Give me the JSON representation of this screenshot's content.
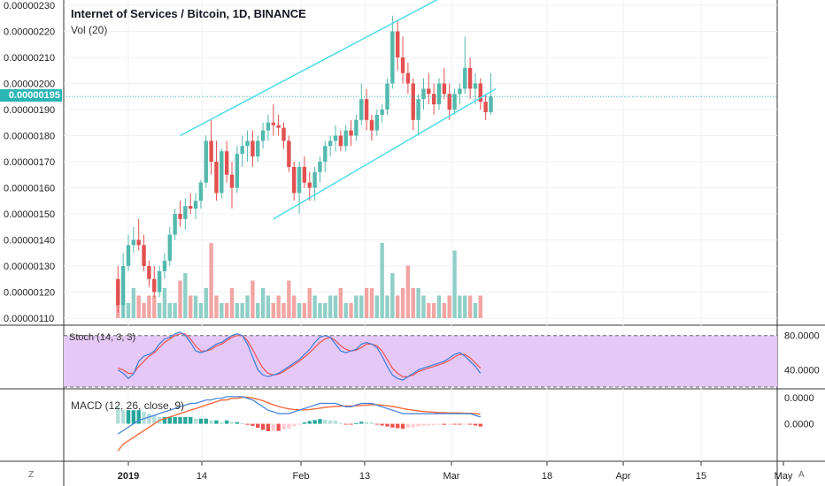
{
  "header": {
    "title": "Internet of Services / Bitcoin, 1D, BINANCE",
    "volume_label": "Vol (20)"
  },
  "current_price": "0.00000195",
  "price_axis": {
    "ticks": [
      "0.00000230",
      "0.00000220",
      "0.00000210",
      "0.00000200",
      "0.00000190",
      "0.00000180",
      "0.00000170",
      "0.00000160",
      "0.00000150",
      "0.00000140",
      "0.00000130",
      "0.00000120",
      "0.00000110"
    ]
  },
  "stoch": {
    "label": "Stoch (14, 3, 3)",
    "ticks": [
      "80.0000",
      "40.0000"
    ]
  },
  "macd": {
    "label": "MACD (12, 26, close, 9)",
    "ticks": [
      "0.0000",
      "0.0000"
    ]
  },
  "x_axis": {
    "ticks": [
      "2019",
      "14",
      "Feb",
      "13",
      "Mar",
      "18",
      "Apr",
      "15",
      "May"
    ]
  },
  "corners": {
    "left": "Z",
    "right": "A"
  },
  "colors": {
    "up": "#53b9ad",
    "down": "#e2504f",
    "vol_up": "#8fcfc7",
    "vol_down": "#f2a5a3",
    "channel": "#4ddbe8",
    "stoch_fill": "#e5c8f5",
    "k_line": "#3d7ed9",
    "d_line": "#ef5350",
    "macd_line": "#3d7ed9",
    "signal_line": "#f26b3a"
  },
  "chart_data": {
    "type": "candlestick",
    "x_unit": "days since 2019-01-01",
    "candles": [
      [
        -2,
        1.25,
        1.3,
        1.12,
        1.15
      ],
      [
        -1,
        1.15,
        1.35,
        1.1,
        1.3
      ],
      [
        0,
        1.3,
        1.42,
        1.28,
        1.38
      ],
      [
        1,
        1.38,
        1.45,
        1.35,
        1.4
      ],
      [
        2,
        1.4,
        1.48,
        1.36,
        1.38
      ],
      [
        3,
        1.38,
        1.42,
        1.28,
        1.3
      ],
      [
        4,
        1.3,
        1.32,
        1.22,
        1.25
      ],
      [
        5,
        1.25,
        1.3,
        1.18,
        1.2
      ],
      [
        6,
        1.2,
        1.3,
        1.18,
        1.28
      ],
      [
        7,
        1.28,
        1.35,
        1.25,
        1.32
      ],
      [
        8,
        1.32,
        1.45,
        1.3,
        1.42
      ],
      [
        9,
        1.42,
        1.52,
        1.4,
        1.5
      ],
      [
        10,
        1.5,
        1.55,
        1.45,
        1.48
      ],
      [
        11,
        1.48,
        1.56,
        1.44,
        1.53
      ],
      [
        12,
        1.53,
        1.58,
        1.5,
        1.52
      ],
      [
        13,
        1.52,
        1.58,
        1.48,
        1.55
      ],
      [
        14,
        1.55,
        1.63,
        1.52,
        1.62
      ],
      [
        15,
        1.62,
        1.8,
        1.6,
        1.78
      ],
      [
        16,
        1.78,
        1.86,
        1.65,
        1.7
      ],
      [
        17,
        1.7,
        1.78,
        1.55,
        1.58
      ],
      [
        18,
        1.58,
        1.75,
        1.56,
        1.74
      ],
      [
        19,
        1.74,
        1.78,
        1.62,
        1.65
      ],
      [
        20,
        1.65,
        1.7,
        1.52,
        1.6
      ],
      [
        21,
        1.6,
        1.76,
        1.58,
        1.73
      ],
      [
        22,
        1.73,
        1.8,
        1.68,
        1.76
      ],
      [
        23,
        1.76,
        1.82,
        1.7,
        1.78
      ],
      [
        24,
        1.78,
        1.82,
        1.68,
        1.72
      ],
      [
        25,
        1.72,
        1.8,
        1.7,
        1.78
      ],
      [
        26,
        1.78,
        1.85,
        1.75,
        1.82
      ],
      [
        27,
        1.82,
        1.88,
        1.78,
        1.85
      ],
      [
        28,
        1.85,
        1.92,
        1.8,
        1.84
      ],
      [
        29,
        1.84,
        1.88,
        1.8,
        1.83
      ],
      [
        30,
        1.83,
        1.85,
        1.75,
        1.78
      ],
      [
        31,
        1.78,
        1.8,
        1.66,
        1.68
      ],
      [
        32,
        1.68,
        1.7,
        1.55,
        1.58
      ],
      [
        33,
        1.58,
        1.7,
        1.5,
        1.68
      ],
      [
        34,
        1.68,
        1.72,
        1.6,
        1.62
      ],
      [
        35,
        1.62,
        1.66,
        1.55,
        1.6
      ],
      [
        36,
        1.6,
        1.68,
        1.55,
        1.66
      ],
      [
        37,
        1.66,
        1.72,
        1.62,
        1.7
      ],
      [
        38,
        1.7,
        1.78,
        1.66,
        1.76
      ],
      [
        39,
        1.76,
        1.8,
        1.72,
        1.78
      ],
      [
        40,
        1.78,
        1.84,
        1.74,
        1.8
      ],
      [
        41,
        1.8,
        1.82,
        1.74,
        1.76
      ],
      [
        42,
        1.76,
        1.84,
        1.74,
        1.82
      ],
      [
        43,
        1.82,
        1.86,
        1.76,
        1.8
      ],
      [
        44,
        1.8,
        1.88,
        1.78,
        1.86
      ],
      [
        45,
        1.86,
        2.0,
        1.84,
        1.94
      ],
      [
        46,
        1.94,
        1.98,
        1.82,
        1.86
      ],
      [
        47,
        1.86,
        1.88,
        1.78,
        1.82
      ],
      [
        48,
        1.82,
        1.9,
        1.8,
        1.88
      ],
      [
        49,
        1.88,
        1.92,
        1.85,
        1.9
      ],
      [
        50,
        1.9,
        2.02,
        1.88,
        2.0
      ],
      [
        51,
        2.0,
        2.26,
        1.98,
        2.2
      ],
      [
        52,
        2.2,
        2.24,
        2.05,
        2.1
      ],
      [
        53,
        2.1,
        2.18,
        2.0,
        2.04
      ],
      [
        54,
        2.04,
        2.08,
        1.96,
        2.0
      ],
      [
        55,
        2.0,
        2.02,
        1.82,
        1.86
      ],
      [
        56,
        1.86,
        1.96,
        1.8,
        1.94
      ],
      [
        57,
        1.94,
        2.02,
        1.9,
        1.98
      ],
      [
        58,
        1.98,
        2.04,
        1.92,
        1.96
      ],
      [
        59,
        1.96,
        2.0,
        1.88,
        1.92
      ],
      [
        60,
        1.92,
        2.02,
        1.9,
        2.0
      ],
      [
        61,
        2.0,
        2.06,
        1.94,
        1.96
      ],
      [
        62,
        1.96,
        2.0,
        1.86,
        1.9
      ],
      [
        63,
        1.9,
        1.98,
        1.88,
        1.96
      ],
      [
        64,
        1.96,
        2.0,
        1.92,
        1.98
      ],
      [
        65,
        1.98,
        2.18,
        1.96,
        2.06
      ],
      [
        66,
        2.06,
        2.1,
        1.94,
        1.98
      ],
      [
        67,
        1.98,
        2.04,
        1.92,
        2.0
      ],
      [
        68,
        2.0,
        2.02,
        1.9,
        1.93
      ],
      [
        69,
        1.93,
        1.96,
        1.86,
        1.89
      ],
      [
        70,
        1.89,
        2.04,
        1.88,
        1.95
      ]
    ],
    "volume": [
      3,
      2,
      2,
      4,
      3,
      2,
      3,
      3,
      2,
      4,
      2,
      2,
      5,
      6,
      3,
      3,
      2,
      4,
      10,
      3,
      2,
      2,
      4,
      2,
      2,
      3,
      5,
      2,
      4,
      3,
      2,
      3,
      2,
      5,
      3,
      2,
      2,
      4,
      3,
      2,
      2,
      3,
      3,
      4,
      2,
      2,
      3,
      3,
      4,
      4,
      3,
      10,
      3,
      6,
      3,
      4,
      7,
      4,
      4,
      3,
      2,
      2,
      3,
      2,
      3,
      9,
      3,
      3,
      3,
      2,
      3
    ],
    "channel_upper": [
      [
        10,
        1.8
      ],
      [
        69,
        2.42
      ]
    ],
    "channel_lower": [
      [
        28,
        1.48
      ],
      [
        71,
        1.98
      ]
    ],
    "stoch_k": [
      40,
      36,
      30,
      35,
      50,
      56,
      58,
      62,
      70,
      76,
      78,
      82,
      84,
      80,
      72,
      62,
      60,
      62,
      66,
      70,
      72,
      76,
      80,
      82,
      80,
      70,
      55,
      40,
      34,
      32,
      34,
      36,
      40,
      44,
      48,
      52,
      58,
      64,
      72,
      78,
      80,
      78,
      70,
      62,
      60,
      62,
      64,
      70,
      72,
      70,
      66,
      56,
      44,
      34,
      30,
      28,
      32,
      36,
      40,
      42,
      44,
      46,
      48,
      50,
      54,
      58,
      60,
      56,
      50,
      44,
      36
    ],
    "stoch_d": [
      42,
      40,
      36,
      36,
      44,
      50,
      56,
      60,
      66,
      72,
      76,
      80,
      82,
      82,
      76,
      68,
      62,
      62,
      64,
      68,
      70,
      74,
      78,
      80,
      80,
      74,
      64,
      52,
      42,
      36,
      34,
      35,
      38,
      42,
      46,
      50,
      55,
      60,
      66,
      72,
      76,
      78,
      74,
      68,
      64,
      62,
      63,
      66,
      70,
      70,
      68,
      62,
      52,
      42,
      36,
      32,
      32,
      34,
      38,
      40,
      42,
      44,
      46,
      48,
      51,
      55,
      58,
      58,
      54,
      48,
      42
    ],
    "macd": [
      -3,
      -2,
      -1,
      0,
      1,
      1.5,
      2,
      2.5,
      3,
      3.5,
      4,
      4.5,
      5,
      5.5,
      6,
      6,
      6.5,
      7,
      7,
      7.5,
      7.5,
      8,
      8,
      8,
      8,
      7.5,
      7,
      6,
      5,
      4,
      3.5,
      3,
      3,
      3,
      3.5,
      4,
      4.5,
      5,
      5.5,
      6,
      6,
      6,
      6,
      5.5,
      5,
      5,
      5.5,
      6,
      6,
      6,
      5.5,
      5,
      4.5,
      4,
      3.5,
      3,
      3,
      3,
      3,
      3,
      3,
      3,
      3,
      3,
      3,
      3,
      3,
      3,
      3,
      2.5,
      2
    ],
    "signal": [
      -8,
      -6,
      -5,
      -4,
      -3,
      -2,
      -1,
      0,
      1,
      1.5,
      2,
      2.5,
      3,
      3.5,
      4,
      4.5,
      5,
      5.5,
      6,
      6.5,
      7,
      7,
      7.5,
      7.5,
      7.8,
      7.8,
      7.6,
      7.2,
      6.8,
      6.2,
      5.6,
      5.1,
      4.7,
      4.4,
      4.2,
      4.1,
      4.1,
      4.2,
      4.4,
      4.6,
      4.8,
      5,
      5.1,
      5.2,
      5.2,
      5.2,
      5.3,
      5.4,
      5.5,
      5.6,
      5.6,
      5.5,
      5.3,
      5.1,
      4.8,
      4.5,
      4.2,
      4.0,
      3.8,
      3.6,
      3.5,
      3.4,
      3.3,
      3.3,
      3.2,
      3.2,
      3.2,
      3.1,
      3.1,
      3.0,
      2.8
    ]
  }
}
